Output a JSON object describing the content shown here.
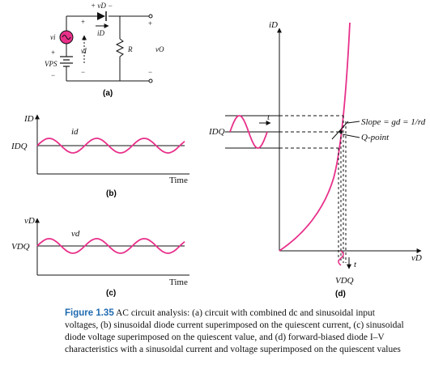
{
  "panel_a": {
    "vD": "+ vD −",
    "iD": "iD",
    "vi": "vi",
    "vI": "vI",
    "VPS": "VPS",
    "R": "R",
    "vO": "vO",
    "label": "(a)",
    "plus": "+",
    "minus": "−"
  },
  "panel_b": {
    "y_label": "ID",
    "level_label": "IDQ",
    "wave_label": "id",
    "x_label": "Time",
    "label": "(b)"
  },
  "panel_c": {
    "y_label": "vD",
    "level_label": "VDQ",
    "wave_label": "vd",
    "x_label": "Time",
    "label": "(c)"
  },
  "panel_d": {
    "y_label": "iD",
    "x_label": "vD",
    "idq_label": "IDQ",
    "vdq_label": "VDQ",
    "t_label": "t",
    "slope_label": "Slope = gd = 1/rd",
    "qpoint_label": "Q-point",
    "label": "(d)"
  },
  "caption": {
    "figure": "Figure 1.35",
    "text": "AC circuit analysis: (a) circuit with combined dc and sinusoidal input voltages, (b) sinusoidal diode current superimposed on the quiescent current, (c) sinusoidal diode voltage superimposed on the quiescent value, and (d) forward-biased diode I–V characteristics with a sinusoidal current and voltage superimposed on the quiescent values"
  },
  "colors": {
    "wave": "#e8308a",
    "accent": "#1f6bb0",
    "ink": "#111111"
  }
}
